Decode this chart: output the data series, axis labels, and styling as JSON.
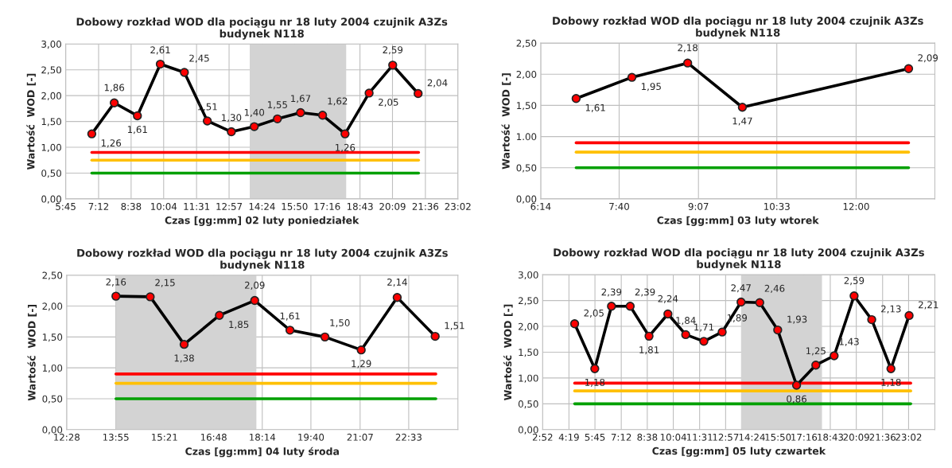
{
  "chart_data": [
    {
      "type": "line",
      "title": "Dobowy rozkład WOD dla pociągu nr 18 luty 2004 czujnik A3Zs\nbudynek N118",
      "xlabel": "Czas [gg:mm] 02 luty poniedziałek",
      "ylabel": "Wartość  WOD [-]",
      "xlim": [
        5.75,
        23.033
      ],
      "xticks": [
        {
          "value": 5.75,
          "label": "5:45"
        },
        {
          "value": 7.2,
          "label": "7:12"
        },
        {
          "value": 8.633,
          "label": "8:38"
        },
        {
          "value": 10.067,
          "label": "10:04"
        },
        {
          "value": 11.517,
          "label": "11:31"
        },
        {
          "value": 12.95,
          "label": "12:57"
        },
        {
          "value": 14.4,
          "label": "14:24"
        },
        {
          "value": 15.833,
          "label": "15:50"
        },
        {
          "value": 17.267,
          "label": "17:16"
        },
        {
          "value": 18.717,
          "label": "18:43"
        },
        {
          "value": 20.15,
          "label": "20:09"
        },
        {
          "value": 21.6,
          "label": "21:36"
        },
        {
          "value": 23.033,
          "label": "23:02"
        }
      ],
      "ylim": [
        0,
        3
      ],
      "yticks": [
        {
          "value": 0,
          "label": "0,00"
        },
        {
          "value": 0.5,
          "label": "0,50"
        },
        {
          "value": 1,
          "label": "1,00"
        },
        {
          "value": 1.5,
          "label": "1,50"
        },
        {
          "value": 2,
          "label": "2,00"
        },
        {
          "value": 2.5,
          "label": "2,50"
        },
        {
          "value": 3,
          "label": "3,00"
        }
      ],
      "grid": true,
      "bands": [
        {
          "axis": "x",
          "from": 13.86,
          "to": 18.11,
          "color": "#d3d3d3"
        }
      ],
      "series": [
        {
          "color": "#ff0000",
          "marker": "none",
          "x": [
            6.9,
            21.3
          ],
          "values": [
            0.9,
            0.9
          ]
        },
        {
          "color": "#ffc000",
          "marker": "none",
          "x": [
            6.9,
            21.3
          ],
          "values": [
            0.75,
            0.75
          ]
        },
        {
          "color": "#00a000",
          "marker": "none",
          "x": [
            6.9,
            21.3
          ],
          "values": [
            0.5,
            0.5
          ]
        },
        {
          "color": "#000000",
          "marker": "circle",
          "x": [
            6.9,
            7.89,
            8.91,
            9.92,
            10.98,
            11.99,
            13.05,
            14.06,
            15.08,
            16.1,
            17.07,
            18.06,
            19.12,
            20.16,
            21.28
          ],
          "values": [
            1.26,
            1.86,
            1.61,
            2.61,
            2.45,
            1.51,
            1.3,
            1.4,
            1.55,
            1.67,
            1.62,
            1.26,
            2.05,
            2.59,
            2.04
          ],
          "value_labels": [
            "1,26",
            "1,86",
            "1,61",
            "2,61",
            "2,45",
            "1,51",
            "1,30",
            "1,40",
            "1,55",
            "1,67",
            "1,62",
            "1,26",
            "2,05",
            "2,59",
            "2,04"
          ]
        }
      ]
    },
    {
      "type": "line",
      "title": "Dobowy rozkład WOD dla pociągu nr 18 luty 2004 czujnik A3Zs\nbudynek N118",
      "xlabel": "Czas [gg:mm] 03 luty wtorek",
      "ylabel": "Wartość  WOD [-]",
      "xlim": [
        6.233,
        13.44
      ],
      "xticks": [
        {
          "value": 6.233,
          "label": "6:14"
        },
        {
          "value": 7.667,
          "label": "7:40"
        },
        {
          "value": 9.117,
          "label": "9:07"
        },
        {
          "value": 10.55,
          "label": "10:33"
        },
        {
          "value": 12.0,
          "label": "12:00"
        }
      ],
      "ylim": [
        0,
        2.5
      ],
      "yticks": [
        {
          "value": 0,
          "label": "0,00"
        },
        {
          "value": 0.5,
          "label": "0,50"
        },
        {
          "value": 1,
          "label": "1.00"
        },
        {
          "value": 1.5,
          "label": "1,50"
        },
        {
          "value": 2,
          "label": "2,00"
        },
        {
          "value": 2.5,
          "label": "2,50"
        }
      ],
      "grid": true,
      "series": [
        {
          "color": "#ff0000",
          "marker": "none",
          "x": [
            6.88,
            12.96
          ],
          "values": [
            0.9,
            0.9
          ]
        },
        {
          "color": "#ffc000",
          "marker": "none",
          "x": [
            6.88,
            12.96
          ],
          "values": [
            0.75,
            0.75
          ]
        },
        {
          "color": "#00a000",
          "marker": "none",
          "x": [
            6.88,
            12.96
          ],
          "values": [
            0.5,
            0.5
          ]
        },
        {
          "color": "#000000",
          "marker": "circle",
          "x": [
            6.88,
            7.9,
            8.92,
            9.92,
            12.96
          ],
          "values": [
            1.61,
            1.95,
            2.18,
            1.47,
            2.09
          ],
          "value_labels": [
            "1,61",
            "1,95",
            "2,18",
            "1,47",
            "2,09"
          ]
        }
      ]
    },
    {
      "type": "line",
      "title": "Dobowy rozkład WOD dla pociągu nr 18 luty 2004 czujnik A3Zs\nbudynek N118",
      "xlabel": "Czas [gg:mm] 04 luty środa",
      "ylabel": "Wartość  WOD [-]",
      "xlim": [
        12.467,
        24.0
      ],
      "xticks": [
        {
          "value": 12.467,
          "label": "12:28"
        },
        {
          "value": 13.917,
          "label": "13:55"
        },
        {
          "value": 15.35,
          "label": "15:21"
        },
        {
          "value": 16.8,
          "label": "16:48"
        },
        {
          "value": 18.233,
          "label": "18:14"
        },
        {
          "value": 19.667,
          "label": "19:40"
        },
        {
          "value": 21.117,
          "label": "21:07"
        },
        {
          "value": 22.55,
          "label": "22:33"
        }
      ],
      "ylim": [
        0,
        2.5
      ],
      "yticks": [
        {
          "value": 0,
          "label": "0,00"
        },
        {
          "value": 0.5,
          "label": "0,50"
        },
        {
          "value": 1,
          "label": "1,00"
        },
        {
          "value": 1.5,
          "label": "1,50"
        },
        {
          "value": 2,
          "label": "2,00"
        },
        {
          "value": 2.5,
          "label": "2,50"
        }
      ],
      "grid": true,
      "bands": [
        {
          "axis": "x",
          "from": 13.92,
          "to": 18.06,
          "color": "#d3d3d3"
        }
      ],
      "series": [
        {
          "color": "#ff0000",
          "marker": "none",
          "x": [
            13.92,
            23.35
          ],
          "values": [
            0.9,
            0.9
          ]
        },
        {
          "color": "#ffc000",
          "marker": "none",
          "x": [
            13.92,
            23.35
          ],
          "values": [
            0.75,
            0.75
          ]
        },
        {
          "color": "#00a000",
          "marker": "none",
          "x": [
            13.92,
            23.35
          ],
          "values": [
            0.5,
            0.5
          ]
        },
        {
          "color": "#000000",
          "marker": "circle",
          "x": [
            13.92,
            14.93,
            15.93,
            16.97,
            18.01,
            19.05,
            20.08,
            21.15,
            22.21,
            23.33
          ],
          "values": [
            2.16,
            2.15,
            1.38,
            1.85,
            2.09,
            1.61,
            1.5,
            1.29,
            2.14,
            1.51
          ],
          "value_labels": [
            "2,16",
            "2,15",
            "1,38",
            "1,85",
            "2,09",
            "1,61",
            "1,50",
            "1,29",
            "2,14",
            "1,51"
          ]
        }
      ]
    },
    {
      "type": "line",
      "title": "Dobowy rozkład WOD dla pociągu nr 18 luty 2004 czujnik A3Zs\nbudynek N118",
      "xlabel": "Czas [gg:mm] 05 luty czwartek",
      "ylabel": "Wartość  WOD [-]",
      "xlim": [
        2.867,
        24.48
      ],
      "xticks": [
        {
          "value": 2.867,
          "label": "2:52"
        },
        {
          "value": 4.317,
          "label": "4:19"
        },
        {
          "value": 5.75,
          "label": "5:45"
        },
        {
          "value": 7.2,
          "label": "7:12"
        },
        {
          "value": 8.633,
          "label": "8:38"
        },
        {
          "value": 10.067,
          "label": "10:04"
        },
        {
          "value": 11.517,
          "label": "11:31"
        },
        {
          "value": 12.95,
          "label": "12:57"
        },
        {
          "value": 14.4,
          "label": "14:24"
        },
        {
          "value": 15.833,
          "label": "15:50"
        },
        {
          "value": 17.267,
          "label": "17:16"
        },
        {
          "value": 18.717,
          "label": "18:43"
        },
        {
          "value": 20.15,
          "label": "20:09"
        },
        {
          "value": 21.6,
          "label": "21:36"
        },
        {
          "value": 23.033,
          "label": "23:02"
        }
      ],
      "ylim": [
        0,
        3
      ],
      "yticks": [
        {
          "value": 0,
          "label": "0,00"
        },
        {
          "value": 0.5,
          "label": "0,50"
        },
        {
          "value": 1,
          "label": "1,00"
        },
        {
          "value": 1.5,
          "label": "1,50"
        },
        {
          "value": 2,
          "label": "2,00"
        },
        {
          "value": 2.5,
          "label": "2,50"
        },
        {
          "value": 3,
          "label": "3,00"
        }
      ],
      "grid": true,
      "bands": [
        {
          "axis": "x",
          "from": 13.8,
          "to": 18.26,
          "color": "#d3d3d3"
        }
      ],
      "series": [
        {
          "color": "#ff0000",
          "marker": "none",
          "x": [
            4.63,
            23.15
          ],
          "values": [
            0.9,
            0.9
          ]
        },
        {
          "color": "#ffc000",
          "marker": "none",
          "x": [
            4.63,
            23.15
          ],
          "values": [
            0.75,
            0.75
          ]
        },
        {
          "color": "#00a000",
          "marker": "none",
          "x": [
            4.63,
            23.15
          ],
          "values": [
            0.5,
            0.5
          ]
        },
        {
          "color": "#000000",
          "marker": "circle",
          "x": [
            4.63,
            5.74,
            6.66,
            7.69,
            8.73,
            9.77,
            10.75,
            11.75,
            12.76,
            13.8,
            14.83,
            15.82,
            16.86,
            17.92,
            18.93,
            20.03,
            21.0,
            22.06,
            23.06
          ],
          "values": [
            2.05,
            1.18,
            2.39,
            2.39,
            1.81,
            2.24,
            1.84,
            1.71,
            1.89,
            2.47,
            2.46,
            1.93,
            0.86,
            1.25,
            1.43,
            2.59,
            2.13,
            1.18,
            2.21
          ],
          "value_labels": [
            "2,05",
            "1,18",
            "2,39",
            "2,39",
            "1,81",
            "2,24",
            "1,84",
            "1,71",
            "1,89",
            "2,47",
            "2,46",
            "1,93",
            "0,86",
            "1,25",
            "1,43",
            "2,59",
            "2,13",
            "1,18",
            "2,21"
          ]
        }
      ]
    }
  ]
}
